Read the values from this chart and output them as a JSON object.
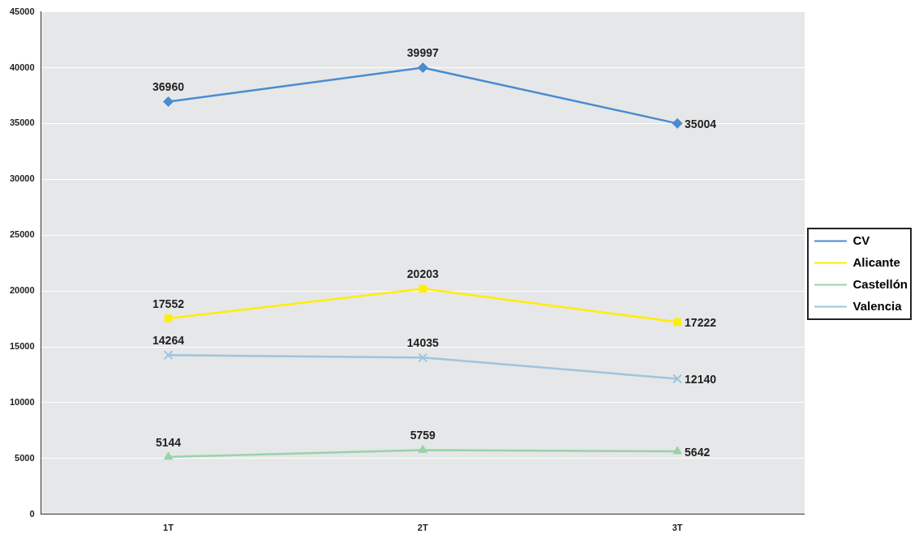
{
  "chart_data": {
    "type": "line",
    "categories": [
      "1T",
      "2T",
      "3T"
    ],
    "series": [
      {
        "name": "CV",
        "color": "#4a8bd0",
        "marker": "diamond",
        "values": [
          36960,
          39997,
          35004
        ]
      },
      {
        "name": "Alicante",
        "color": "#ffee00",
        "marker": "square",
        "values": [
          17552,
          20203,
          17222
        ]
      },
      {
        "name": "Castellón",
        "color": "#99d3a8",
        "marker": "triangle",
        "values": [
          5144,
          5759,
          5642
        ]
      },
      {
        "name": "Valencia",
        "color": "#9fc5dc",
        "marker": "cross",
        "values": [
          14264,
          14035,
          12140
        ]
      }
    ],
    "ylim": [
      0,
      45000
    ],
    "yticks": [
      0,
      5000,
      10000,
      15000,
      20000,
      25000,
      30000,
      35000,
      40000,
      45000
    ],
    "grid": "y",
    "legend": "right",
    "data_labels": true,
    "line_style": "solid"
  }
}
